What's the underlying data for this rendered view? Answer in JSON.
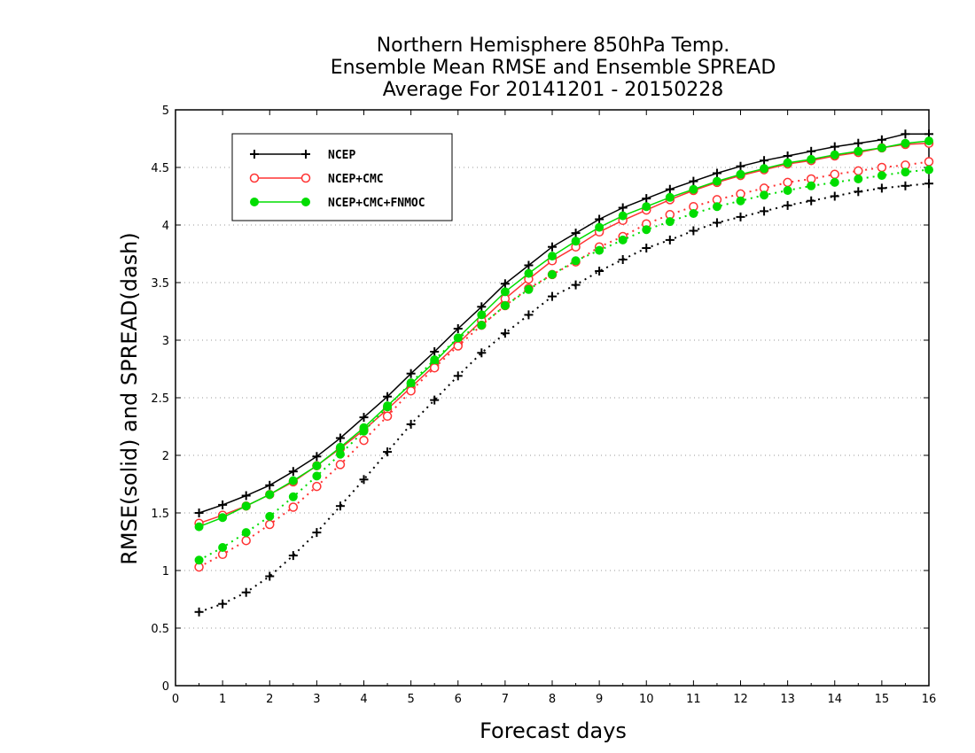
{
  "chart_data": {
    "type": "line",
    "title": [
      "Northern Hemisphere 850hPa Temp.",
      "Ensemble Mean RMSE and Ensemble SPREAD",
      "Average For 20141201 - 20150228"
    ],
    "xlabel": "Forecast days",
    "ylabel": "RMSE(solid) and SPREAD(dash)",
    "xlim": [
      0,
      16
    ],
    "ylim": [
      0,
      5
    ],
    "xticks": [
      "0",
      "1",
      "2",
      "3",
      "4",
      "5",
      "6",
      "7",
      "8",
      "9",
      "10",
      "11",
      "12",
      "13",
      "14",
      "15",
      "16"
    ],
    "yticks": [
      "0",
      "0.5",
      "1",
      "1.5",
      "2",
      "2.5",
      "3",
      "3.5",
      "4",
      "4.5",
      "5"
    ],
    "grid": "horizontal-dotted",
    "legend_position": "top-left",
    "x": [
      0.5,
      1,
      1.5,
      2,
      2.5,
      3,
      3.5,
      4,
      4.5,
      5,
      5.5,
      6,
      6.5,
      7,
      7.5,
      8,
      8.5,
      9,
      9.5,
      10,
      10.5,
      11,
      11.5,
      12,
      12.5,
      13,
      13.5,
      14,
      14.5,
      15,
      15.5,
      16
    ],
    "series": [
      {
        "name": "NCEP",
        "metric": "RMSE",
        "style": "solid",
        "color": "#000000",
        "marker": "plus",
        "values": [
          1.5,
          1.57,
          1.65,
          1.74,
          1.86,
          1.99,
          2.15,
          2.33,
          2.51,
          2.71,
          2.9,
          3.1,
          3.29,
          3.49,
          3.65,
          3.81,
          3.93,
          4.05,
          4.15,
          4.23,
          4.31,
          4.38,
          4.45,
          4.51,
          4.56,
          4.6,
          4.64,
          4.68,
          4.71,
          4.74,
          4.79,
          4.79
        ]
      },
      {
        "name": "NCEP+CMC",
        "metric": "RMSE",
        "style": "solid",
        "color": "#ff3333",
        "marker": "open-circle",
        "values": [
          1.41,
          1.48,
          1.56,
          1.66,
          1.77,
          1.91,
          2.06,
          2.22,
          2.4,
          2.59,
          2.78,
          2.97,
          3.17,
          3.36,
          3.53,
          3.69,
          3.81,
          3.94,
          4.04,
          4.13,
          4.22,
          4.3,
          4.37,
          4.43,
          4.48,
          4.53,
          4.56,
          4.6,
          4.63,
          4.67,
          4.7,
          4.71
        ]
      },
      {
        "name": "NCEP+CMC+FNMOC",
        "metric": "RMSE",
        "style": "solid",
        "color": "#00dd00",
        "marker": "filled-circle",
        "values": [
          1.38,
          1.46,
          1.56,
          1.66,
          1.78,
          1.91,
          2.07,
          2.24,
          2.43,
          2.62,
          2.81,
          3.02,
          3.22,
          3.42,
          3.58,
          3.73,
          3.86,
          3.98,
          4.08,
          4.16,
          4.24,
          4.31,
          4.38,
          4.44,
          4.49,
          4.54,
          4.57,
          4.61,
          4.64,
          4.67,
          4.71,
          4.73
        ]
      },
      {
        "name": "NCEP",
        "metric": "SPREAD",
        "style": "dotted",
        "color": "#000000",
        "marker": "plus",
        "values": [
          0.64,
          0.71,
          0.81,
          0.95,
          1.13,
          1.33,
          1.56,
          1.79,
          2.03,
          2.27,
          2.48,
          2.69,
          2.89,
          3.06,
          3.22,
          3.38,
          3.48,
          3.6,
          3.7,
          3.8,
          3.87,
          3.95,
          4.02,
          4.07,
          4.12,
          4.17,
          4.21,
          4.25,
          4.29,
          4.32,
          4.34,
          4.36
        ]
      },
      {
        "name": "NCEP+CMC",
        "metric": "SPREAD",
        "style": "dotted",
        "color": "#ff3333",
        "marker": "open-circle",
        "values": [
          1.03,
          1.14,
          1.26,
          1.4,
          1.55,
          1.73,
          1.92,
          2.13,
          2.34,
          2.56,
          2.76,
          2.95,
          3.13,
          3.3,
          3.45,
          3.57,
          3.68,
          3.81,
          3.9,
          4.01,
          4.09,
          4.16,
          4.22,
          4.27,
          4.32,
          4.37,
          4.4,
          4.44,
          4.47,
          4.5,
          4.52,
          4.55
        ]
      },
      {
        "name": "NCEP+CMC+FNMOC",
        "metric": "SPREAD",
        "style": "dotted",
        "color": "#00dd00",
        "marker": "filled-circle",
        "values": [
          1.09,
          1.2,
          1.33,
          1.47,
          1.64,
          1.82,
          2.01,
          2.21,
          2.42,
          2.63,
          2.83,
          3.02,
          3.13,
          3.3,
          3.44,
          3.57,
          3.69,
          3.78,
          3.87,
          3.96,
          4.03,
          4.1,
          4.16,
          4.21,
          4.26,
          4.3,
          4.34,
          4.37,
          4.4,
          4.43,
          4.46,
          4.48
        ]
      }
    ]
  }
}
